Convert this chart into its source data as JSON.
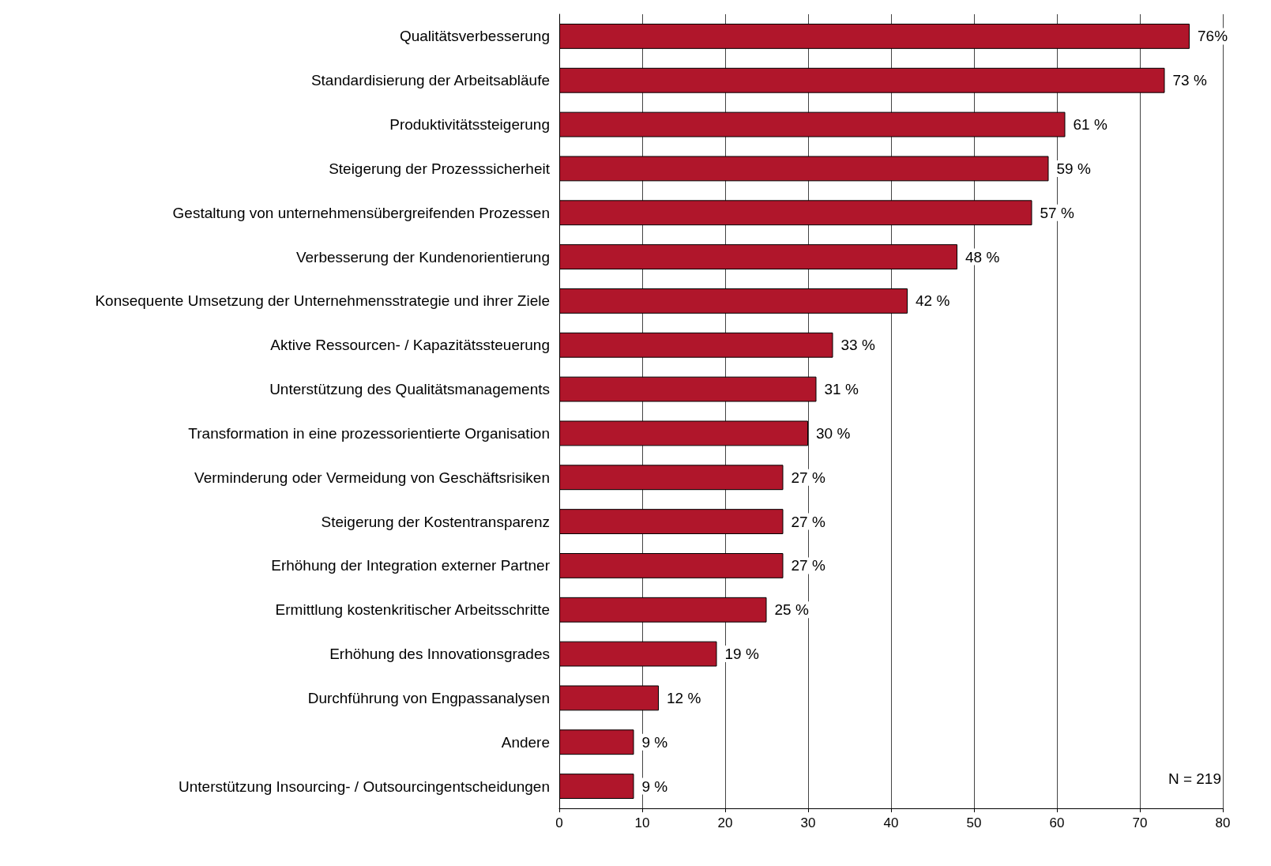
{
  "chart_data": {
    "type": "bar",
    "orientation": "horizontal",
    "categories": [
      "Qualitätsverbesserung",
      "Standardisierung der Arbeitsabläufe",
      "Produktivitätssteigerung",
      "Steigerung der Prozesssicherheit",
      "Gestaltung von unternehmensübergreifenden Prozessen",
      "Verbesserung der Kundenorientierung",
      "Konsequente Umsetzung der Unternehmensstrategie und ihrer Ziele",
      "Aktive Ressourcen- / Kapazitätssteuerung",
      "Unterstützung des Qualitätsmanagements",
      "Transformation in eine prozessorientierte Organisation",
      "Verminderung oder Vermeidung von Geschäftsrisiken",
      "Steigerung der Kostentransparenz",
      "Erhöhung der Integration externer Partner",
      "Ermittlung kostenkritischer Arbeitsschritte",
      "Erhöhung des Innovationsgrades",
      "Durchführung von Engpassanalysen",
      "Andere",
      "Unterstützung Insourcing- / Outsourcingentscheidungen"
    ],
    "values": [
      76,
      73,
      61,
      59,
      57,
      48,
      42,
      33,
      31,
      30,
      27,
      27,
      27,
      25,
      19,
      12,
      9,
      9
    ],
    "value_labels": [
      "76%",
      "73 %",
      "61 %",
      "59 %",
      "57 %",
      "48 %",
      "42 %",
      "33 %",
      "31 %",
      "30 %",
      "27 %",
      "27 %",
      "27 %",
      "25 %",
      "19 %",
      "12 %",
      "9 %",
      "9 %"
    ],
    "color": "#b0162b",
    "xlim": [
      0,
      80
    ],
    "xticks": [
      0,
      10,
      20,
      30,
      40,
      50,
      60,
      70,
      80
    ],
    "grid": "x",
    "annotations": [
      "N = 219"
    ]
  }
}
